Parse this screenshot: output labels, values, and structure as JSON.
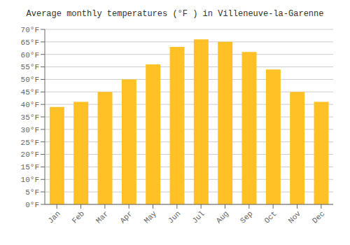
{
  "chart_data": {
    "type": "bar",
    "title": "Average monthly temperatures (°F ) in Villeneuve-la-Garenne",
    "categories": [
      "Jan",
      "Feb",
      "Mar",
      "Apr",
      "May",
      "Jun",
      "Jul",
      "Aug",
      "Sep",
      "Oct",
      "Nov",
      "Dec"
    ],
    "values": [
      39,
      41,
      45,
      50,
      56,
      63,
      66,
      65,
      61,
      54,
      45,
      41
    ],
    "color": "#FFC125",
    "ylim": [
      0,
      70
    ],
    "yticks": [
      {
        "value": 0,
        "label": "0°F"
      },
      {
        "value": 5,
        "label": "5°F"
      },
      {
        "value": 10,
        "label": "10°F"
      },
      {
        "value": 15,
        "label": "15°F"
      },
      {
        "value": 20,
        "label": "20°F"
      },
      {
        "value": 25,
        "label": "25°F"
      },
      {
        "value": 30,
        "label": "30°F"
      },
      {
        "value": 35,
        "label": "35°F"
      },
      {
        "value": 40,
        "label": "40°F"
      },
      {
        "value": 45,
        "label": "45°F"
      },
      {
        "value": 50,
        "label": "50°F"
      },
      {
        "value": 55,
        "label": "55°F"
      },
      {
        "value": 60,
        "label": "60°F"
      },
      {
        "value": 65,
        "label": "65°F"
      },
      {
        "value": 70,
        "label": "70°F"
      }
    ],
    "grid": true
  }
}
